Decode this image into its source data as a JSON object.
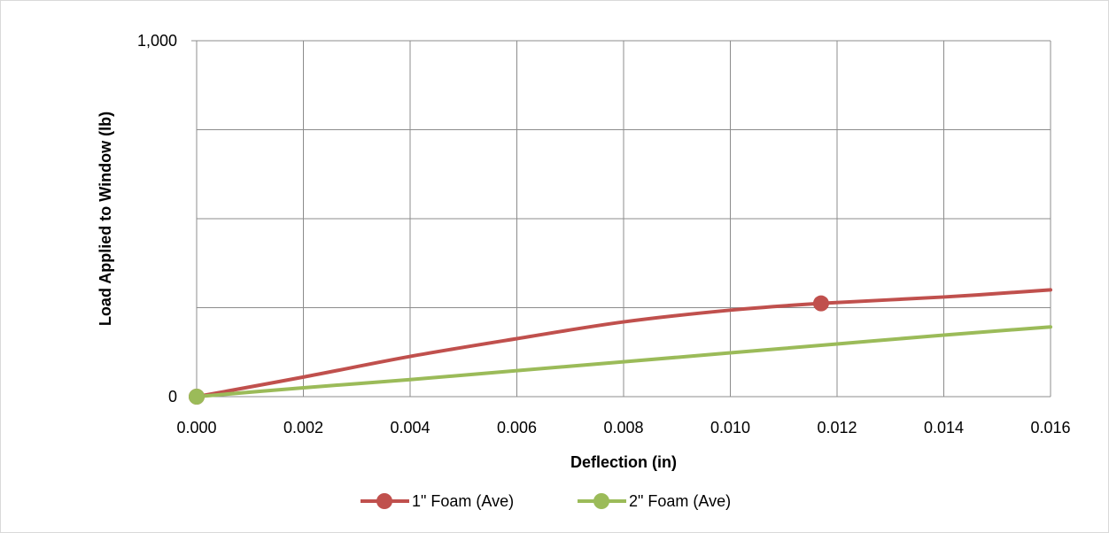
{
  "chart_data": {
    "type": "line",
    "title": "",
    "xlabel": "Deflection (in)",
    "ylabel": "Load Applied to Window (lb)",
    "xlim": [
      0,
      0.016
    ],
    "ylim": [
      0,
      1000
    ],
    "x_ticks": [
      "0.000",
      "0.002",
      "0.004",
      "0.006",
      "0.008",
      "0.010",
      "0.012",
      "0.014",
      "0.016"
    ],
    "y_ticks": [
      "0",
      "1,000"
    ],
    "y_gridlines": [
      250,
      500,
      750
    ],
    "grid": true,
    "legend_position": "bottom",
    "series": [
      {
        "name": "1\" Foam (Ave)",
        "color": "#c0504d",
        "x": [
          0,
          0.002,
          0.004,
          0.006,
          0.008,
          0.01,
          0.0117,
          0.014,
          0.016
        ],
        "y": [
          0,
          55,
          113,
          163,
          210,
          243,
          262,
          280,
          300
        ],
        "markers": [
          {
            "x": 0,
            "y": 0
          },
          {
            "x": 0.0117,
            "y": 262
          }
        ]
      },
      {
        "name": "2\" Foam (Ave)",
        "color": "#9bbb59",
        "x": [
          0,
          0.002,
          0.004,
          0.006,
          0.008,
          0.01,
          0.012,
          0.014,
          0.016
        ],
        "y": [
          0,
          25,
          48,
          73,
          98,
          123,
          148,
          173,
          196
        ],
        "markers": [
          {
            "x": 0,
            "y": 0
          }
        ]
      }
    ]
  }
}
